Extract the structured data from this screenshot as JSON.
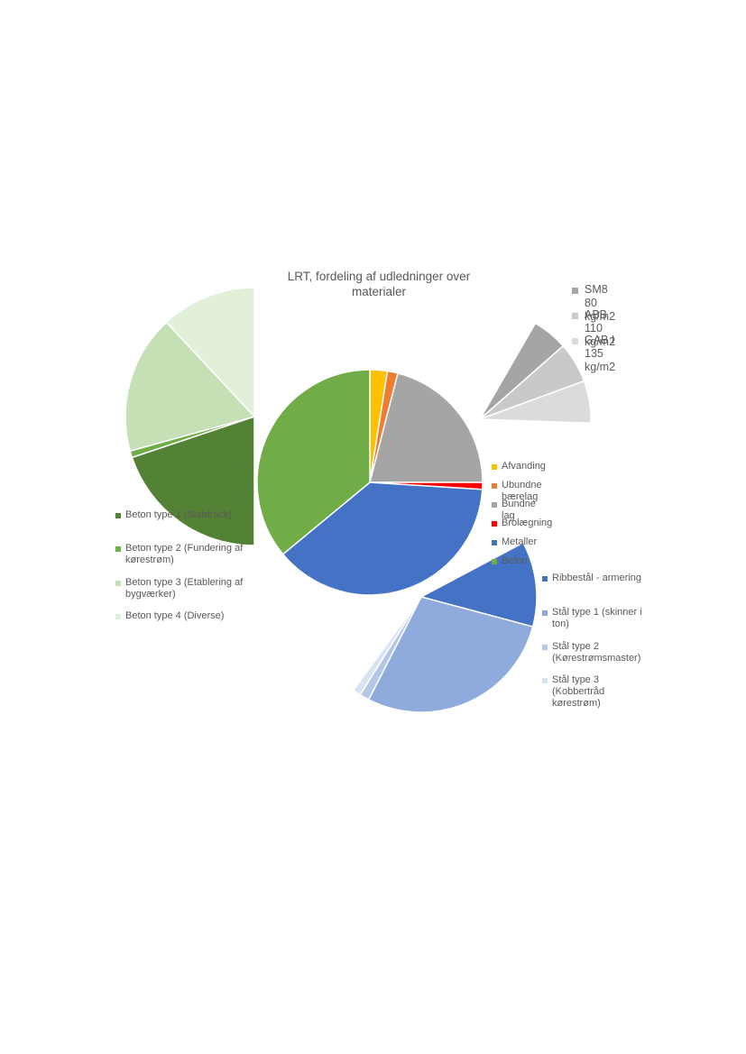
{
  "chart_data": [
    {
      "type": "pie",
      "title": "LRT, fordeling af udledninger over materialer",
      "legend_position": "right",
      "categories": [
        "Afvanding",
        "Ubundne bærelag",
        "Bundne lag",
        "Brolægning",
        "Metaller",
        "Beton"
      ],
      "values": [
        2.5,
        1.5,
        21,
        1,
        38,
        36
      ],
      "colors": [
        "#FFC000",
        "#ED7D31",
        "#A5A5A5",
        "#FF0000",
        "#4472C4",
        "#70AD47"
      ]
    },
    {
      "type": "pie",
      "title": "",
      "legend_position": "top-right",
      "categories": [
        "SM8 80 kg/m2",
        "ABB 110 kg/m2",
        "GAB I 135 kg/m2"
      ],
      "values": [
        6.3,
        7.2,
        7.5
      ],
      "colors": [
        "#A5A5A5",
        "#C9C9C9",
        "#DBDBDB"
      ]
    },
    {
      "type": "pie",
      "title": "",
      "legend_position": "bottom-left",
      "categories": [
        "Beton type 1 (Slabtrack)",
        "Beton type 2 (Fundering af kørestrøm)",
        "Beton type 3 (Etablering af bygværker)",
        "Beton type 4 (Diverse)"
      ],
      "values": [
        14.3,
        0.6,
        12.5,
        8.6
      ],
      "colors": [
        "#548235",
        "#70AD47",
        "#C5E0B4",
        "#E2F0D9"
      ]
    },
    {
      "type": "pie",
      "title": "",
      "legend_position": "right",
      "categories": [
        "Ribbestål - armering",
        "Stål type 1 (skinner i ton)",
        "Stål type 2 (Kørestrømsmaster)",
        "Stål type 3 (Kobbertråd kørestrøm)"
      ],
      "values": [
        10.6,
        25.2,
        1.2,
        1.0
      ],
      "colors": [
        "#4472C4",
        "#8FAADC",
        "#B4C7E7",
        "#DAE3F3"
      ]
    }
  ]
}
